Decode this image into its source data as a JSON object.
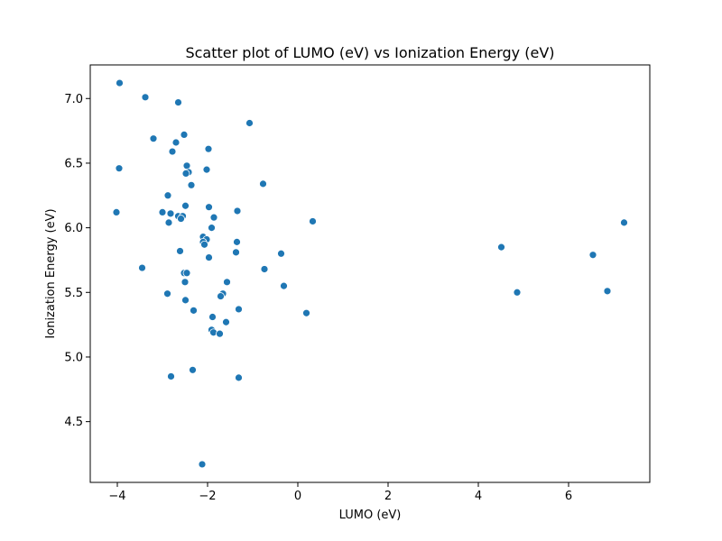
{
  "chart_data": {
    "type": "scatter",
    "title": "Scatter plot of LUMO (eV) vs Ionization Energy (eV)",
    "xlabel": "LUMO (eV)",
    "ylabel": "Ionization Energy (eV)",
    "xlim": [
      -4.6,
      7.8
    ],
    "ylim": [
      4.03,
      7.26
    ],
    "xticks": [
      -4,
      -2,
      0,
      2,
      4,
      6
    ],
    "yticks": [
      4.5,
      5.0,
      5.5,
      6.0,
      6.5,
      7.0
    ],
    "xtick_labels": [
      "−4",
      "−2",
      "0",
      "2",
      "4",
      "6"
    ],
    "ytick_labels": [
      "4.5",
      "5.0",
      "5.5",
      "6.0",
      "6.5",
      "7.0"
    ],
    "grid": false,
    "marker_color": "#1f77b4",
    "points": [
      {
        "x": -3.95,
        "y": 7.12
      },
      {
        "x": -3.38,
        "y": 7.01
      },
      {
        "x": -2.65,
        "y": 6.97
      },
      {
        "x": -1.07,
        "y": 6.81
      },
      {
        "x": -2.52,
        "y": 6.72
      },
      {
        "x": -3.2,
        "y": 6.69
      },
      {
        "x": -2.7,
        "y": 6.66
      },
      {
        "x": -1.98,
        "y": 6.61
      },
      {
        "x": -2.78,
        "y": 6.59
      },
      {
        "x": -2.46,
        "y": 6.48
      },
      {
        "x": -3.96,
        "y": 6.46
      },
      {
        "x": -2.02,
        "y": 6.45
      },
      {
        "x": -2.42,
        "y": 6.43
      },
      {
        "x": -2.48,
        "y": 6.42
      },
      {
        "x": -0.77,
        "y": 6.34
      },
      {
        "x": -2.36,
        "y": 6.33
      },
      {
        "x": -2.88,
        "y": 6.25
      },
      {
        "x": -2.49,
        "y": 6.17
      },
      {
        "x": -1.97,
        "y": 6.16
      },
      {
        "x": -1.34,
        "y": 6.13
      },
      {
        "x": -3.0,
        "y": 6.12
      },
      {
        "x": -4.02,
        "y": 6.12
      },
      {
        "x": -2.82,
        "y": 6.11
      },
      {
        "x": -2.65,
        "y": 6.09
      },
      {
        "x": -2.55,
        "y": 6.09
      },
      {
        "x": -1.86,
        "y": 6.08
      },
      {
        "x": -2.59,
        "y": 6.07
      },
      {
        "x": -2.86,
        "y": 6.04
      },
      {
        "x": 0.33,
        "y": 6.05
      },
      {
        "x": 7.23,
        "y": 6.04
      },
      {
        "x": -1.91,
        "y": 6.0
      },
      {
        "x": -2.1,
        "y": 5.93
      },
      {
        "x": -2.02,
        "y": 5.91
      },
      {
        "x": -2.1,
        "y": 5.89
      },
      {
        "x": -1.35,
        "y": 5.89
      },
      {
        "x": -2.07,
        "y": 5.87
      },
      {
        "x": 4.51,
        "y": 5.85
      },
      {
        "x": -2.61,
        "y": 5.82
      },
      {
        "x": -1.37,
        "y": 5.81
      },
      {
        "x": -0.37,
        "y": 5.8
      },
      {
        "x": 6.54,
        "y": 5.79
      },
      {
        "x": -1.97,
        "y": 5.77
      },
      {
        "x": -3.45,
        "y": 5.69
      },
      {
        "x": -0.74,
        "y": 5.68
      },
      {
        "x": -2.52,
        "y": 5.65
      },
      {
        "x": -2.46,
        "y": 5.65
      },
      {
        "x": -2.5,
        "y": 5.58
      },
      {
        "x": -1.57,
        "y": 5.58
      },
      {
        "x": -0.31,
        "y": 5.55
      },
      {
        "x": 6.86,
        "y": 5.51
      },
      {
        "x": 4.86,
        "y": 5.5
      },
      {
        "x": -2.89,
        "y": 5.49
      },
      {
        "x": -1.66,
        "y": 5.49
      },
      {
        "x": -1.71,
        "y": 5.47
      },
      {
        "x": -2.49,
        "y": 5.44
      },
      {
        "x": -1.31,
        "y": 5.37
      },
      {
        "x": -2.31,
        "y": 5.36
      },
      {
        "x": 0.19,
        "y": 5.34
      },
      {
        "x": -1.89,
        "y": 5.31
      },
      {
        "x": -1.59,
        "y": 5.27
      },
      {
        "x": -1.91,
        "y": 5.21
      },
      {
        "x": -1.87,
        "y": 5.19
      },
      {
        "x": -1.73,
        "y": 5.18
      },
      {
        "x": -2.33,
        "y": 4.9
      },
      {
        "x": -2.81,
        "y": 4.85
      },
      {
        "x": -1.31,
        "y": 4.84
      },
      {
        "x": -2.12,
        "y": 4.17
      }
    ]
  }
}
